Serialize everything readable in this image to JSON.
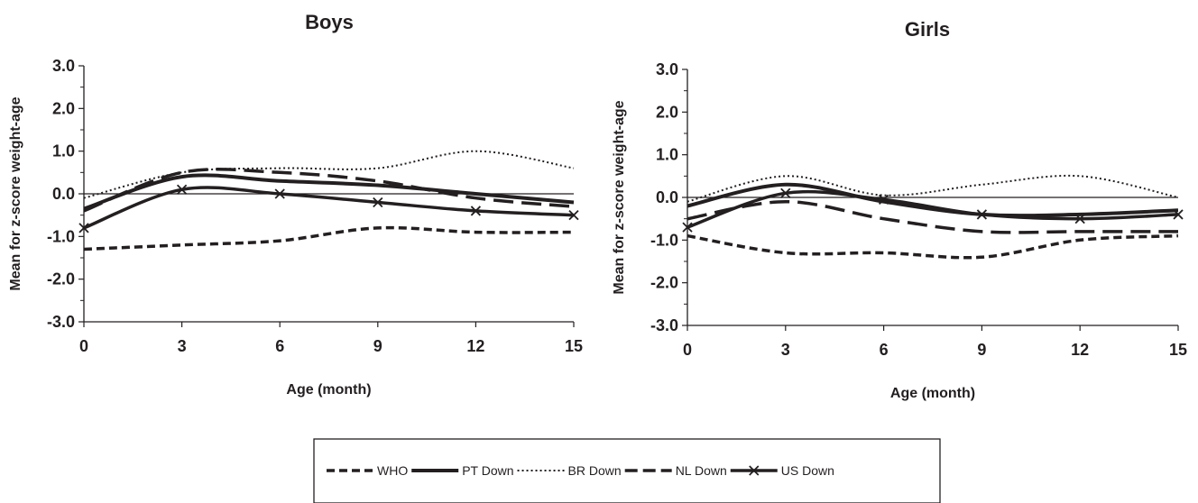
{
  "chart_data": [
    {
      "type": "line",
      "title": "Boys",
      "xlabel": "Age (month)",
      "ylabel": "Mean for z-score weight-age",
      "xlim": [
        0,
        15
      ],
      "ylim": [
        -3.0,
        3.0
      ],
      "xticks": [
        "0",
        "3",
        "6",
        "9",
        "12",
        "15"
      ],
      "yticks": [
        "3.0",
        "2.0",
        "1.0",
        "0.0",
        "-1.0",
        "-2.0",
        "-3.0"
      ],
      "grid": false,
      "x": [
        0,
        3,
        6,
        9,
        12,
        15
      ],
      "series": [
        {
          "name": "WHO",
          "values": [
            -1.3,
            -1.2,
            -1.1,
            -0.8,
            -0.9,
            -0.9
          ]
        },
        {
          "name": "PT Down",
          "values": [
            -0.35,
            0.4,
            0.3,
            0.2,
            0.0,
            -0.2
          ]
        },
        {
          "name": "BR Down",
          "values": [
            -0.1,
            0.5,
            0.6,
            0.6,
            1.0,
            0.6
          ]
        },
        {
          "name": "NL Down",
          "values": [
            -0.4,
            0.5,
            0.5,
            0.3,
            -0.1,
            -0.3
          ]
        },
        {
          "name": "US Down",
          "values": [
            -0.8,
            0.1,
            0.0,
            -0.2,
            -0.4,
            -0.5
          ]
        }
      ]
    },
    {
      "type": "line",
      "title": "Girls",
      "xlabel": "Age (month)",
      "ylabel": "Mean for z-score weight-age",
      "xlim": [
        0,
        15
      ],
      "ylim": [
        -3.0,
        3.0
      ],
      "xticks": [
        "0",
        "3",
        "6",
        "9",
        "12",
        "15"
      ],
      "yticks": [
        "3.0",
        "2.0",
        "1.0",
        "0.0",
        "-1.0",
        "-2.0",
        "-3.0"
      ],
      "grid": false,
      "x": [
        0,
        3,
        6,
        9,
        12,
        15
      ],
      "series": [
        {
          "name": "WHO",
          "values": [
            -0.9,
            -1.3,
            -1.3,
            -1.4,
            -1.0,
            -0.9
          ]
        },
        {
          "name": "PT Down",
          "values": [
            -0.2,
            0.3,
            -0.1,
            -0.4,
            -0.4,
            -0.3
          ]
        },
        {
          "name": "BR Down",
          "values": [
            -0.1,
            0.5,
            0.05,
            0.3,
            0.5,
            0.0
          ]
        },
        {
          "name": "NL Down",
          "values": [
            -0.5,
            -0.1,
            -0.5,
            -0.8,
            -0.8,
            -0.8
          ]
        },
        {
          "name": "US Down",
          "values": [
            -0.7,
            0.1,
            -0.05,
            -0.4,
            -0.5,
            -0.4
          ]
        }
      ]
    }
  ],
  "legend": {
    "placement": "bottom",
    "entries": [
      {
        "label": "WHO",
        "style": "dashed"
      },
      {
        "label": "PT Down",
        "style": "solid"
      },
      {
        "label": "BR Down",
        "style": "dotted"
      },
      {
        "label": "NL Down",
        "style": "long-dash"
      },
      {
        "label": "US Down",
        "style": "solid-cross-markers"
      }
    ]
  },
  "colors": {
    "ink": "#231f20",
    "background": "#ffffff"
  }
}
